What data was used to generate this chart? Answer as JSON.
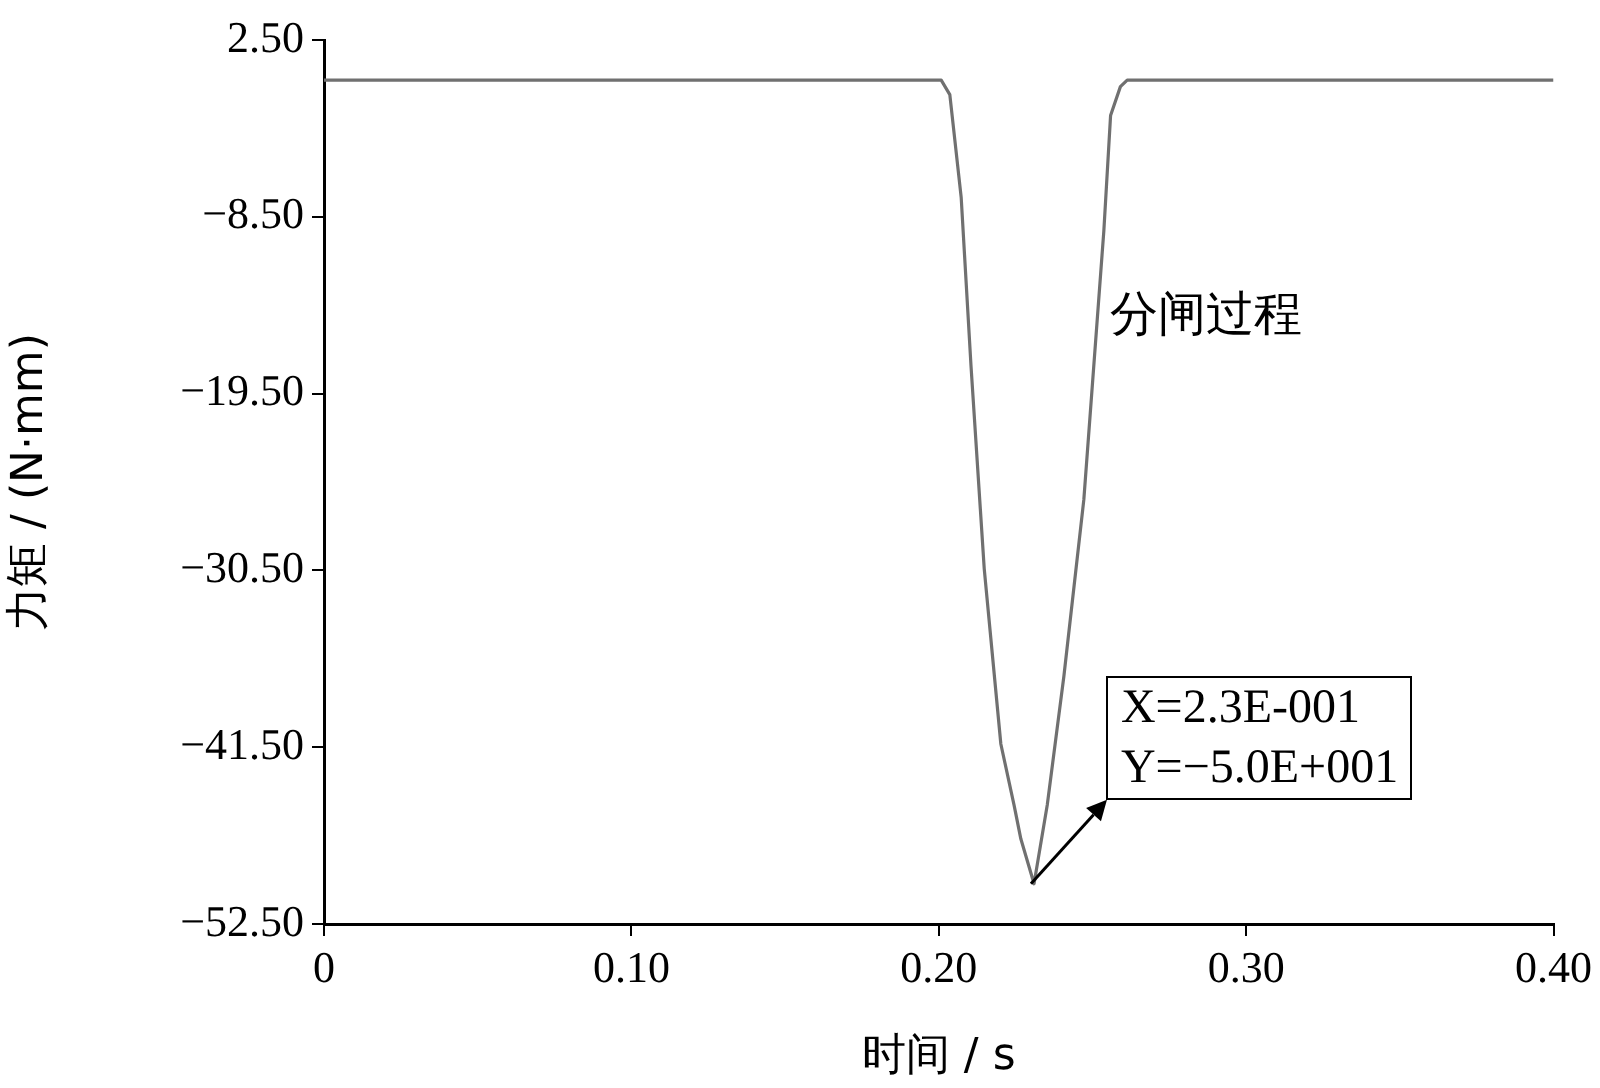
{
  "chart_data": {
    "type": "line",
    "xlabel": "时间 / s",
    "ylabel": "力矩 / (N·mm)",
    "xlim": [
      0,
      0.4
    ],
    "xticks": [
      0,
      {
        "value": 0.1,
        "label": "0.10"
      },
      {
        "value": 0.2,
        "label": "0.20"
      },
      {
        "value": 0.3,
        "label": "0.30"
      },
      {
        "value": 0.4,
        "label": "0.40"
      }
    ],
    "ylim": [
      -52.5,
      2.5
    ],
    "yticks": [
      {
        "value": 2.5,
        "label": "2.50"
      },
      {
        "value": -8.5,
        "label": "−8.50"
      },
      {
        "value": -19.5,
        "label": "−19.50"
      },
      {
        "value": -30.5,
        "label": "−30.50"
      },
      {
        "value": -41.5,
        "label": "−41.50"
      },
      {
        "value": -52.5,
        "label": "−52.50"
      }
    ],
    "grid": false,
    "legend": false,
    "marker": "none",
    "line_style": "solid",
    "series": [
      {
        "name": "分闸过程",
        "color": "#707070",
        "x": [
          0,
          0.2008,
          0.2036,
          0.2073,
          0.2105,
          0.2148,
          0.2202,
          0.2245,
          0.2267,
          0.231,
          0.2353,
          0.2407,
          0.2472,
          0.2537,
          0.2559,
          0.2591,
          0.2613,
          0.4
        ],
        "values": [
          0,
          0,
          -0.9,
          -7.3,
          -17.8,
          -30.4,
          -41.3,
          -45.1,
          -47.2,
          -50,
          -45.1,
          -37.1,
          -26.1,
          -9.4,
          -2.2,
          -0.4,
          0,
          0
        ]
      }
    ],
    "annotations": [
      {
        "text": "X=2.3E-001\nY=−5.0E+001",
        "x": 0.23,
        "y": -50
      }
    ]
  }
}
